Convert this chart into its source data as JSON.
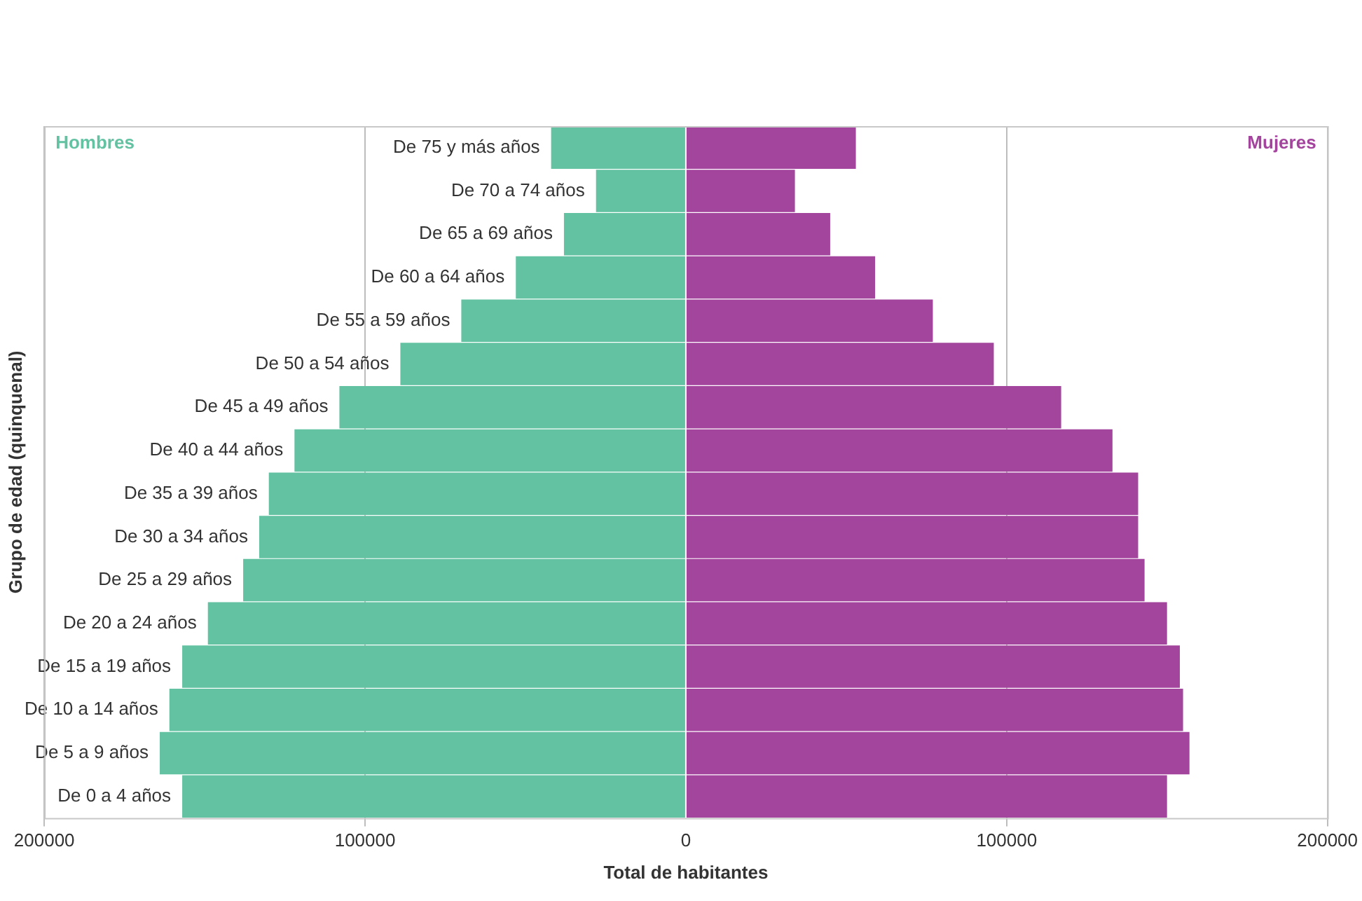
{
  "chart_data": {
    "type": "bar",
    "orientation": "horizontal",
    "stacked": true,
    "xlabel": "Total de habitantes",
    "ylabel": "Grupo de edad (quinquenal)",
    "categories": [
      "De 75 y más años",
      "De 70 a 74 años",
      "De 65 a 69 años",
      "De 60 a 64 años",
      "De 55 a 59 años",
      "De 50 a 54 años",
      "De 45 a 49 años",
      "De 40 a 44 años",
      "De 35 a 39 años",
      "De 30 a 34 años",
      "De 25 a 29 años",
      "De 20 a 24 años",
      "De 15 a 19 años",
      "De 10 a 14 años",
      "De 5 a 9 años",
      "De 0 a 4 años"
    ],
    "series": [
      {
        "name": "Hombres",
        "color": "#62c2a2",
        "values": [
          -42000,
          -28000,
          -38000,
          -53000,
          -70000,
          -89000,
          -108000,
          -122000,
          -130000,
          -133000,
          -138000,
          -149000,
          -157000,
          -161000,
          -164000,
          -157000
        ]
      },
      {
        "name": "Mujeres",
        "color": "#a3449d",
        "values": [
          53000,
          34000,
          45000,
          59000,
          77000,
          96000,
          117000,
          133000,
          141000,
          141000,
          143000,
          150000,
          154000,
          155000,
          157000,
          150000
        ]
      }
    ],
    "xlim": [
      -200000,
      200000
    ],
    "xticks": [
      {
        "value": -200000,
        "label": "200000"
      },
      {
        "value": -100000,
        "label": "100000"
      },
      0,
      100000,
      200000
    ],
    "grid": "x"
  }
}
